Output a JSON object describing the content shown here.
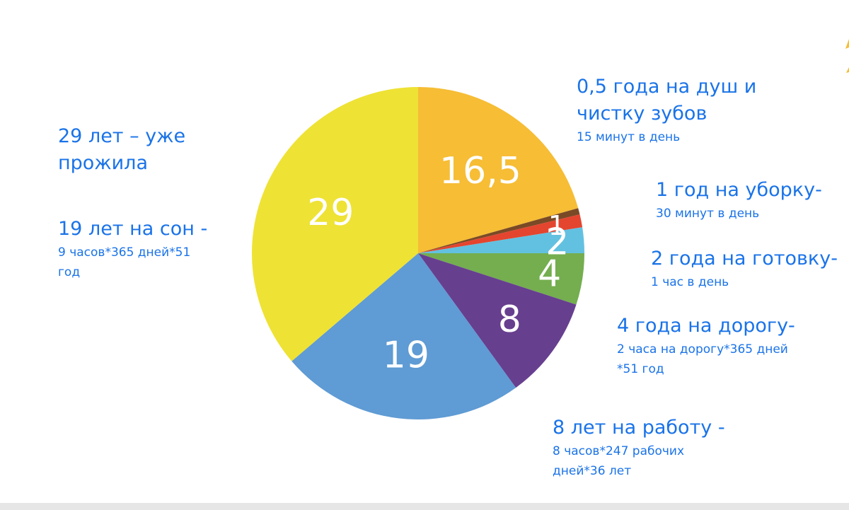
{
  "chart_data": {
    "type": "pie",
    "start_angle_deg": 0,
    "slices": [
      {
        "label": "16,5",
        "value": 16.5,
        "color": "#f6bd35"
      },
      {
        "label": "",
        "value": 0.5,
        "color": "#7a4a26"
      },
      {
        "label": "1",
        "value": 1,
        "color": "#e4452f"
      },
      {
        "label": "2",
        "value": 2,
        "color": "#62c1e0"
      },
      {
        "label": "4",
        "value": 4,
        "color": "#74ae4f"
      },
      {
        "label": "8",
        "value": 8,
        "color": "#673f8f"
      },
      {
        "label": "19",
        "value": 19,
        "color": "#5f9bd4"
      },
      {
        "label": "29",
        "value": 29,
        "color": "#eee234"
      }
    ]
  },
  "annotations": {
    "lived": {
      "main": "29 лет – уже\nпрожила",
      "sub": ""
    },
    "sleep": {
      "main": "19 лет на сон -",
      "sub": "9 часов*365 дней*51\nгод"
    },
    "shower": {
      "main": "0,5 года на душ и\nчистку зубов",
      "sub": "15 минут в день"
    },
    "cleaning": {
      "main": "1 год на уборку-",
      "sub": "30 минут в день"
    },
    "cooking": {
      "main": "2 года на готовку-",
      "sub": "1 час в день"
    },
    "commute": {
      "main": "4 года на дорогу-",
      "sub": "2 часа на дорогу*365 дней\n*51 год"
    },
    "work": {
      "main": "8 лет на работу -",
      "sub": "8 часов*247 рабочих\nдней*36 лет"
    }
  },
  "colors": {
    "annotation_text": "#1a73e8"
  }
}
